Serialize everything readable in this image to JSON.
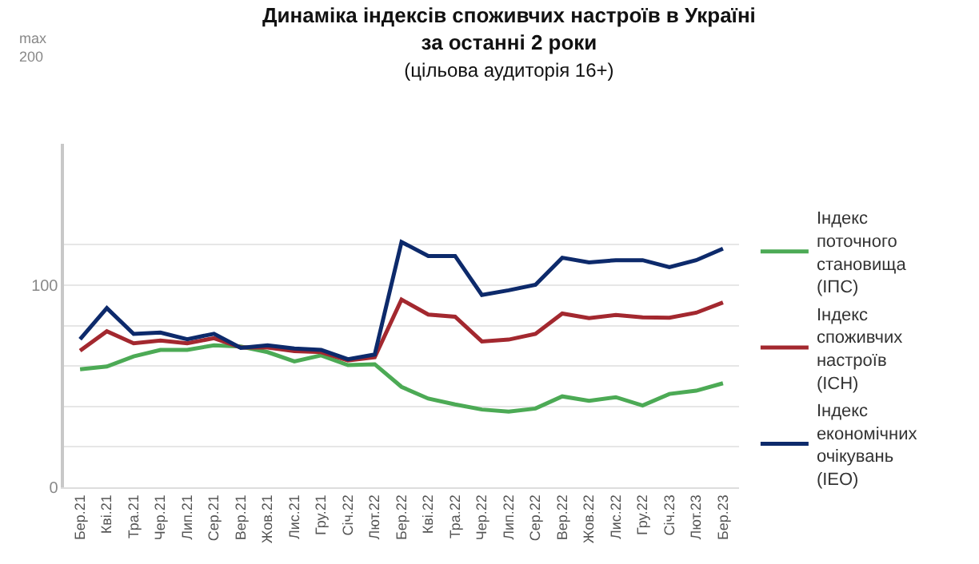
{
  "chart_data": {
    "type": "line",
    "title": "Динаміка індексів споживчих настроїв в Україні\nза останні 2 роки",
    "subtitle": "(цільова аудиторія 16+)",
    "annotations": [
      "max\n200"
    ],
    "categories": [
      "Бер.21",
      "Кві.21",
      "Тра.21",
      "Чер.21",
      "Лип.21",
      "Сер.21",
      "Вер.21",
      "Жов.21",
      "Лис.21",
      "Гру.21",
      "Січ.22",
      "Лют.22",
      "Бер.22",
      "Кві.22",
      "Тра.22",
      "Чер.22",
      "Лип.22",
      "Сер.22",
      "Вер.22",
      "Жов.22",
      "Лис.22",
      "Гру.22",
      "Січ.23",
      "Лют.23",
      "Бер.23"
    ],
    "series": [
      {
        "name": "Індекс поточного становища (ІПС)",
        "color": "#4caa55",
        "values": [
          58.4,
          59.8,
          64.8,
          68,
          68,
          70.3,
          69.7,
          66.9,
          62.3,
          65.3,
          60.5,
          60.9,
          49.7,
          43.9,
          41,
          38.5,
          37.5,
          39,
          45,
          42.8,
          44.6,
          40.5,
          46.2,
          47.8,
          51.5
        ]
      },
      {
        "name": "Індекс споживчих настроїв (ІСН)",
        "color": "#a3282f",
        "values": [
          67.6,
          77.2,
          71.3,
          72.6,
          71.3,
          73.8,
          69.2,
          69.2,
          67.4,
          66.9,
          62.8,
          64.4,
          92.9,
          85.5,
          84.4,
          72.2,
          73.1,
          75.9,
          86,
          83.7,
          85.3,
          84.1,
          83.9,
          86.4,
          91.5
        ]
      },
      {
        "name": "Індекс економічних очікувань (ІЕО)",
        "color": "#0d2a6b",
        "values": [
          73.3,
          88.7,
          75.9,
          76.6,
          73.3,
          76,
          69,
          70.3,
          68.7,
          68,
          63.4,
          65.7,
          121.4,
          114.5,
          114.5,
          95.2,
          97.5,
          100.2,
          113.6,
          111.3,
          112.4,
          112.4,
          109,
          112.4,
          118.1
        ]
      }
    ],
    "ylim": [
      0,
      170
    ],
    "yticks": [
      0,
      {
        "value": 20,
        "label": null
      },
      {
        "value": 40,
        "label": null
      },
      {
        "value": 60,
        "label": null
      },
      {
        "value": 80,
        "label": null
      },
      100,
      {
        "value": 120,
        "label": null
      }
    ],
    "grid": "y",
    "legend": "right",
    "marker": "none",
    "line_style": "solid"
  }
}
